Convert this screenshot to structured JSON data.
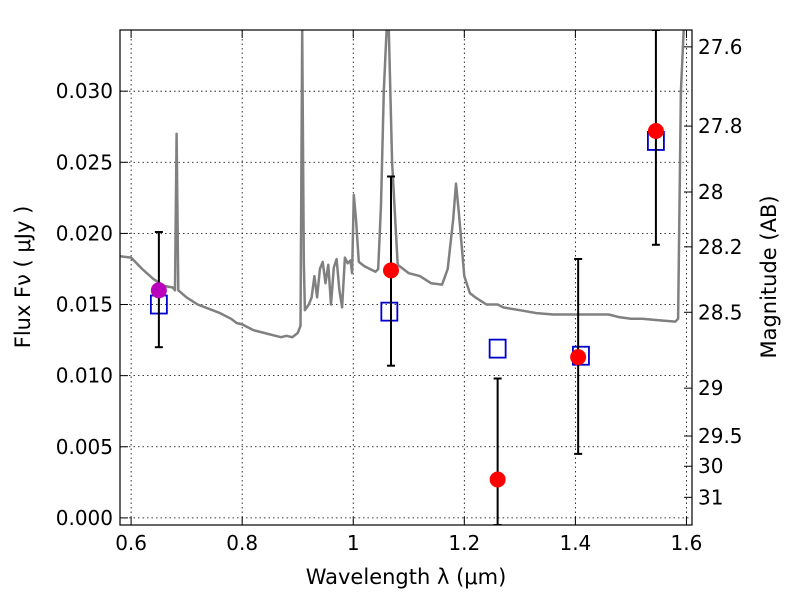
{
  "chart_data": {
    "type": "scatter",
    "title": "",
    "xlabel": "Wavelength  λ (μm)",
    "ylabel": "Flux  Fν  ( μJy )",
    "y2label": "Magnitude (AB)",
    "xlim": [
      0.58,
      1.61
    ],
    "ylim": [
      -0.0005,
      0.0343
    ],
    "grid": true,
    "x_ticks": [
      {
        "value": 0.6,
        "label": "0.6"
      },
      {
        "value": 0.8,
        "label": "0.8"
      },
      {
        "value": 1.0,
        "label": "1"
      },
      {
        "value": 1.2,
        "label": "1.2"
      },
      {
        "value": 1.4,
        "label": "1.4"
      },
      {
        "value": 1.6,
        "label": "1.6"
      }
    ],
    "y_ticks": [
      {
        "value": 0.0,
        "label": "0.000"
      },
      {
        "value": 0.005,
        "label": "0.005"
      },
      {
        "value": 0.01,
        "label": "0.010"
      },
      {
        "value": 0.015,
        "label": "0.015"
      },
      {
        "value": 0.02,
        "label": "0.020"
      },
      {
        "value": 0.025,
        "label": "0.025"
      },
      {
        "value": 0.03,
        "label": "0.030"
      }
    ],
    "y2_ticks": [
      {
        "mag": 27.6,
        "label": "27.6"
      },
      {
        "mag": 27.8,
        "label": "27.8"
      },
      {
        "mag": 28,
        "label": "28"
      },
      {
        "mag": 28.2,
        "label": "28.2"
      },
      {
        "mag": 28.5,
        "label": "28.5"
      },
      {
        "mag": 29,
        "label": "29"
      },
      {
        "mag": 29.5,
        "label": "29.5"
      },
      {
        "mag": 30,
        "label": "30"
      },
      {
        "mag": 31,
        "label": "31"
      }
    ],
    "series": [
      {
        "type": "line",
        "color": "#808080",
        "points": [
          [
            0.58,
            0.0184
          ],
          [
            0.6,
            0.0183
          ],
          [
            0.62,
            0.0175
          ],
          [
            0.64,
            0.0168
          ],
          [
            0.66,
            0.0163
          ],
          [
            0.675,
            0.0162
          ],
          [
            0.679,
            0.016
          ],
          [
            0.682,
            0.027
          ],
          [
            0.685,
            0.016
          ],
          [
            0.7,
            0.0155
          ],
          [
            0.72,
            0.015
          ],
          [
            0.74,
            0.0147
          ],
          [
            0.76,
            0.0144
          ],
          [
            0.78,
            0.014
          ],
          [
            0.79,
            0.0137
          ],
          [
            0.8,
            0.0136
          ],
          [
            0.82,
            0.0132
          ],
          [
            0.84,
            0.013
          ],
          [
            0.86,
            0.0128
          ],
          [
            0.87,
            0.0127
          ],
          [
            0.88,
            0.0128
          ],
          [
            0.89,
            0.0127
          ],
          [
            0.9,
            0.013
          ],
          [
            0.905,
            0.0135
          ],
          [
            0.908,
            0.0343
          ],
          [
            0.911,
            0.018
          ],
          [
            0.913,
            0.0146
          ],
          [
            0.92,
            0.015
          ],
          [
            0.925,
            0.0155
          ],
          [
            0.93,
            0.017
          ],
          [
            0.935,
            0.0155
          ],
          [
            0.94,
            0.0175
          ],
          [
            0.945,
            0.018
          ],
          [
            0.95,
            0.0165
          ],
          [
            0.955,
            0.0178
          ],
          [
            0.96,
            0.015
          ],
          [
            0.965,
            0.0176
          ],
          [
            0.97,
            0.0182
          ],
          [
            0.975,
            0.016
          ],
          [
            0.98,
            0.0148
          ],
          [
            0.985,
            0.0183
          ],
          [
            0.99,
            0.0179
          ],
          [
            0.995,
            0.0181
          ],
          [
            0.998,
            0.0172
          ],
          [
            1.001,
            0.0227
          ],
          [
            1.005,
            0.021
          ],
          [
            1.01,
            0.018
          ],
          [
            1.02,
            0.0177
          ],
          [
            1.03,
            0.0175
          ],
          [
            1.04,
            0.0173
          ],
          [
            1.045,
            0.0175
          ],
          [
            1.05,
            0.022
          ],
          [
            1.055,
            0.03
          ],
          [
            1.06,
            0.0343
          ],
          [
            1.064,
            0.0343
          ],
          [
            1.07,
            0.025
          ],
          [
            1.08,
            0.0178
          ],
          [
            1.1,
            0.0172
          ],
          [
            1.12,
            0.017
          ],
          [
            1.14,
            0.0165
          ],
          [
            1.16,
            0.0164
          ],
          [
            1.17,
            0.0175
          ],
          [
            1.18,
            0.021
          ],
          [
            1.185,
            0.0235
          ],
          [
            1.19,
            0.0215
          ],
          [
            1.2,
            0.017
          ],
          [
            1.21,
            0.0158
          ],
          [
            1.22,
            0.0155
          ],
          [
            1.24,
            0.015
          ],
          [
            1.26,
            0.015
          ],
          [
            1.27,
            0.0148
          ],
          [
            1.3,
            0.0146
          ],
          [
            1.33,
            0.0144
          ],
          [
            1.36,
            0.0143
          ],
          [
            1.4,
            0.0143
          ],
          [
            1.43,
            0.0143
          ],
          [
            1.46,
            0.0143
          ],
          [
            1.48,
            0.0141
          ],
          [
            1.5,
            0.014
          ],
          [
            1.52,
            0.014
          ],
          [
            1.55,
            0.0139
          ],
          [
            1.58,
            0.0138
          ],
          [
            1.585,
            0.014
          ],
          [
            1.59,
            0.03
          ],
          [
            1.595,
            0.0343
          ]
        ]
      },
      {
        "type": "scatter",
        "marker": "open-square",
        "color": "#0000cc",
        "points": [
          [
            0.65,
            0.015
          ],
          [
            1.065,
            0.0145
          ],
          [
            1.26,
            0.0119
          ],
          [
            1.41,
            0.0114
          ],
          [
            1.545,
            0.0265
          ]
        ]
      },
      {
        "type": "errorbar",
        "marker": "filled-circle",
        "color": "#ff0000",
        "points": [
          {
            "x": 0.65,
            "y": 0.016,
            "yerr_low": 0.012,
            "yerr_high": 0.0201,
            "color": "#bb00bb"
          },
          {
            "x": 1.068,
            "y": 0.0174,
            "yerr_low": 0.0107,
            "yerr_high": 0.024
          },
          {
            "x": 1.26,
            "y": 0.0027,
            "yerr_low": -0.0005,
            "yerr_high": 0.0098
          },
          {
            "x": 1.405,
            "y": 0.0113,
            "yerr_low": 0.0045,
            "yerr_high": 0.0182
          },
          {
            "x": 1.545,
            "y": 0.0272,
            "yerr_low": 0.0192,
            "yerr_high": 0.0343
          }
        ]
      }
    ]
  }
}
